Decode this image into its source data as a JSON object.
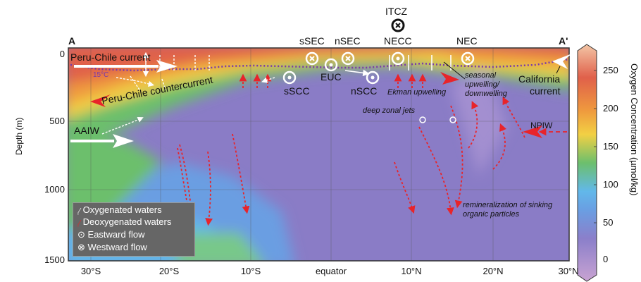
{
  "section_labels": {
    "start": "A",
    "end": "A'"
  },
  "top_labels": {
    "itcz": "ITCZ",
    "ssec": "sSEC",
    "nsec": "nSEC",
    "necc": "NECC",
    "nec": "NEC"
  },
  "currents": {
    "peru_chile": "Peru-Chile current",
    "isotherm": "15°C",
    "euc": "EUC",
    "sscc": "sSCC",
    "nscc": "nSCC",
    "ekman": "Ekman upwelling",
    "seasonal": [
      "seasonal",
      "upwelling/",
      "downwelling"
    ],
    "california": [
      "California",
      "current"
    ],
    "countercurrent": "Peru-Chile countercurrent",
    "aaiw": "AAIW",
    "deep_jets": "deep zonal jets",
    "npiw": "NPIW",
    "remineralization": [
      "remineralization of sinking",
      "organic particles"
    ]
  },
  "axes": {
    "ylabel": "Depth (m)",
    "yticks": [
      "0",
      "500",
      "1000",
      "1500"
    ],
    "xticks": [
      "30°S",
      "20°S",
      "10°S",
      "equator",
      "10°N",
      "20°N",
      "30°N"
    ]
  },
  "colorbar": {
    "label": "Oxygen Concentration (µmol/kg)",
    "ticks": [
      "0",
      "50",
      "100",
      "150",
      "200",
      "250"
    ],
    "range": [
      0,
      275
    ],
    "colors": [
      "#c9a3d2",
      "#8b7fca",
      "#62b8ea",
      "#6cbf6c",
      "#f2d044",
      "#ef9a3e",
      "#e0604a",
      "#f3c6a6"
    ]
  },
  "legend": {
    "items": [
      "Oxygenated waters",
      "Deoxygenated waters",
      "Eastward flow",
      "Westward flow"
    ]
  }
}
